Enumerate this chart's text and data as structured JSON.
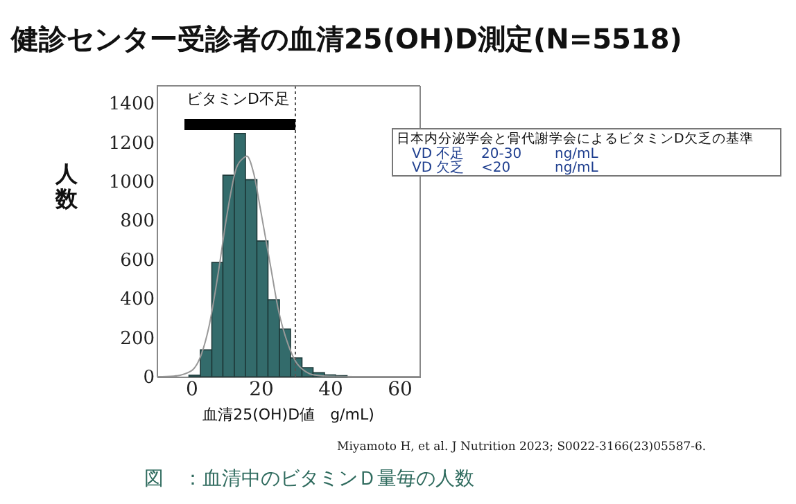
{
  "chart_data": {
    "type": "histogram",
    "title": "健診センター受診者の血清25(OH)D測定(N=5518)",
    "xlabel": "血清25(OH)D値　g/mL)",
    "ylabel": "人数",
    "bins": [
      -0.7,
      2.6,
      5.9,
      9.1,
      12.4,
      15.6,
      18.9,
      22.1,
      25.4,
      28.6,
      31.9,
      35.1,
      38.4,
      41.6,
      44.9
    ],
    "values": [
      7,
      137,
      585,
      1032,
      1246,
      1009,
      695,
      394,
      244,
      96,
      46,
      20,
      9,
      5
    ],
    "color": "#336b6b",
    "series": [
      {
        "type": "line",
        "color": "#999999",
        "x": [
          -10,
          -5,
          0,
          3,
          5,
          8,
          10,
          13,
          15,
          16,
          18,
          20,
          23,
          25,
          28,
          30,
          33,
          35,
          40,
          50,
          66
        ],
        "values": [
          0,
          3,
          30,
          120,
          250,
          560,
          800,
          1070,
          1120,
          1130,
          1040,
          850,
          550,
          350,
          160,
          80,
          25,
          10,
          2,
          0,
          0
        ]
      }
    ],
    "xlim": [
      -10,
      66
    ],
    "ylim": [
      0,
      1490
    ],
    "xticks": [
      0,
      20,
      40,
      60
    ],
    "yticks": [
      0,
      200,
      400,
      600,
      800,
      1000,
      1200,
      1400
    ],
    "grid": false,
    "ref_lines": [
      {
        "axis": "x",
        "value": 30,
        "label": "ビタミンD不足",
        "line_style": "dotted",
        "color": "#555555"
      }
    ],
    "annotations": [
      "日本内分泌学会と骨代謝学会によるビタミンD欠乏の基準",
      "VD 不足",
      "20-30",
      "ng/mL",
      "VD 欠乏",
      "<20",
      "ng/mL",
      "Miyamoto H, et al.  J Nutrition 2023; S0022-3166(23)05587-6.",
      "図　：血清中のビタミンＤ量毎の人数"
    ]
  }
}
